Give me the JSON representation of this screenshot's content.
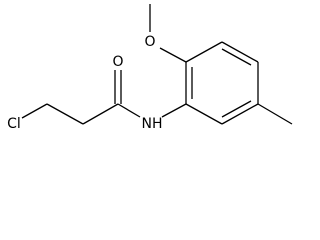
{
  "nodes": [
    {
      "label": "Cl"
    },
    {
      "label": "O"
    },
    {
      "label": "NH"
    },
    {
      "label": "O"
    }
  ]
}
